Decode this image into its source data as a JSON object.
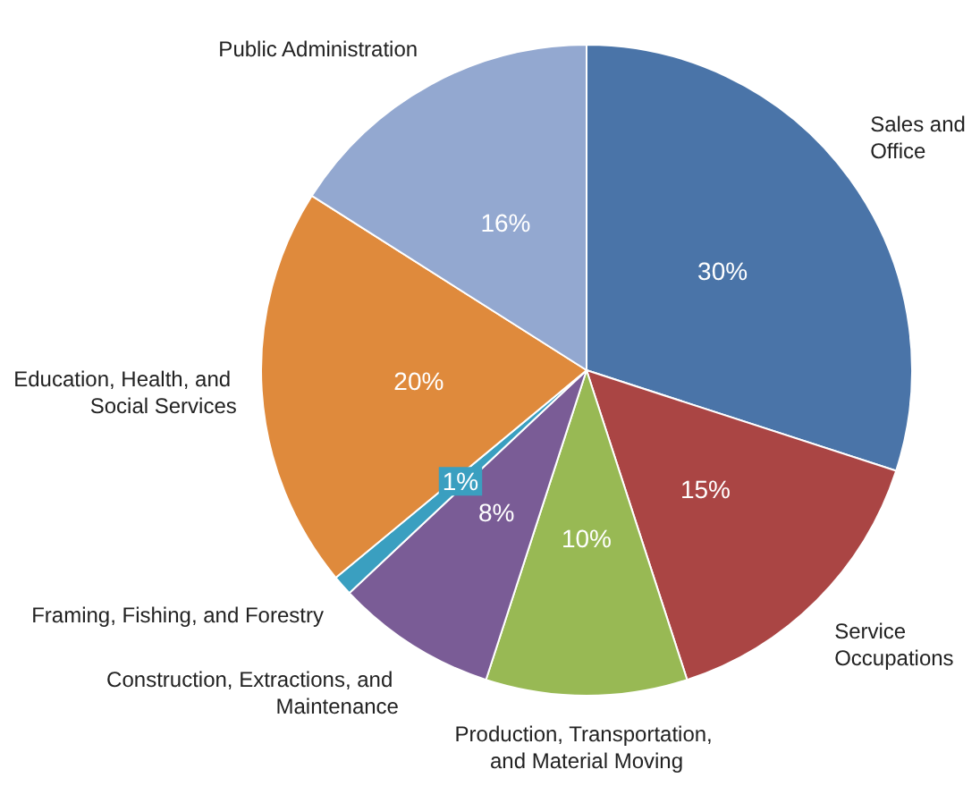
{
  "chart_data": {
    "type": "pie",
    "categories": [
      "Sales and Office",
      "Service Occupations",
      "Production, Transportation, and Material Moving",
      "Construction, Extractions, and Maintenance",
      "Framing, Fishing, and Forestry",
      "Education, Health, and Social Services",
      "Public Administration"
    ],
    "values": [
      30,
      15,
      10,
      8,
      1,
      20,
      16
    ],
    "value_labels": [
      "30%",
      "15%",
      "10%",
      "8%",
      "1%",
      "20%",
      "16%"
    ],
    "colors": [
      "#4a74a8",
      "#aa4544",
      "#98b954",
      "#7a5c96",
      "#3a9fc0",
      "#df8a3c",
      "#93a8d0"
    ]
  }
}
